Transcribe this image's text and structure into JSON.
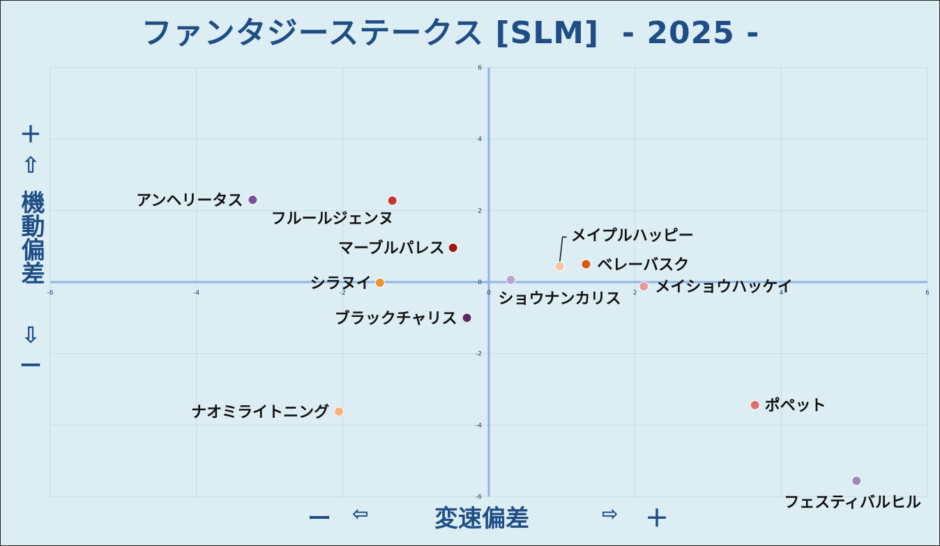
{
  "chart_data": {
    "type": "scatter",
    "title": "ファンタジーステークス [SLM]  - 2025 -",
    "xlabel": "変速偏差",
    "ylabel": "機動偏差",
    "xlim": [
      -6,
      6
    ],
    "ylim": [
      -6,
      6
    ],
    "xticks": [
      -6,
      -4,
      -2,
      0,
      2,
      4,
      6
    ],
    "yticks": [
      -6,
      -4,
      -2,
      0,
      2,
      4,
      6
    ],
    "grid": true,
    "points": [
      {
        "name": "アンヘリータス",
        "x": -3.23,
        "y": 2.3,
        "color": "#7b4f9d"
      },
      {
        "name": "フルールジェンヌ",
        "x": -1.32,
        "y": 2.28,
        "color": "#c0392b"
      },
      {
        "name": "マーブルパレス",
        "x": -0.49,
        "y": 0.96,
        "color": "#a01818"
      },
      {
        "name": "シラヌイ",
        "x": -1.49,
        "y": -0.02,
        "color": "#f0922e"
      },
      {
        "name": "ブラックチャリス",
        "x": -0.3,
        "y": -1.0,
        "color": "#5b2a5e"
      },
      {
        "name": "ナオミライトニング",
        "x": -2.05,
        "y": -3.62,
        "color": "#f7b27a"
      },
      {
        "name": "メイプルハッピー",
        "x": 0.97,
        "y": 0.44,
        "color": "#f5c6a0"
      },
      {
        "name": "ベレーバスク",
        "x": 1.33,
        "y": 0.5,
        "color": "#d55a10"
      },
      {
        "name": "ショウナンカリス",
        "x": 0.3,
        "y": 0.06,
        "color": "#b8a6cc"
      },
      {
        "name": "メイショウハッケイ",
        "x": 2.12,
        "y": -0.12,
        "color": "#e49a9a"
      },
      {
        "name": "ポペット",
        "x": 3.64,
        "y": -3.44,
        "color": "#e07070"
      },
      {
        "name": "フェスティバルヒル",
        "x": 5.03,
        "y": -5.56,
        "color": "#9f86bf"
      }
    ]
  },
  "axis_labels": {
    "y_plus": "＋",
    "y_up_arrow": "⇧",
    "y_down_arrow": "⇩",
    "y_minus": "ー",
    "x_minus": "ー",
    "x_left_arrow": "⇦",
    "x_right_arrow": "⇨",
    "x_plus": "＋"
  },
  "colors": {
    "background": "#dcedf3",
    "axis": "#8fb4e3",
    "grid": "#c7dbe6",
    "title": "#1f4e86"
  }
}
